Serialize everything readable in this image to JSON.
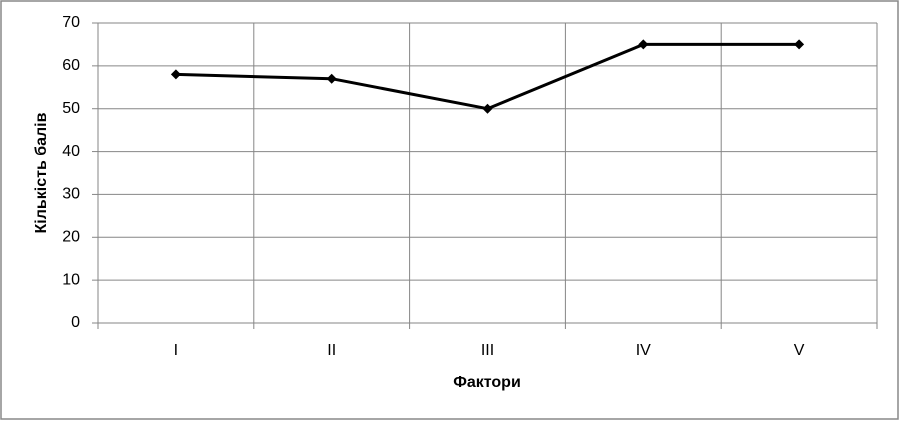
{
  "chart_data": {
    "type": "line",
    "x_label": "Фактори",
    "y_label": "Кількість балів",
    "categories": [
      "I",
      "II",
      "III",
      "IV",
      "V"
    ],
    "values": [
      58,
      57,
      50,
      65,
      65
    ],
    "color": "#000000",
    "ylim": [
      0,
      70
    ],
    "yticks": [
      0,
      10,
      20,
      30,
      40,
      50,
      60,
      70
    ],
    "grid": true
  }
}
